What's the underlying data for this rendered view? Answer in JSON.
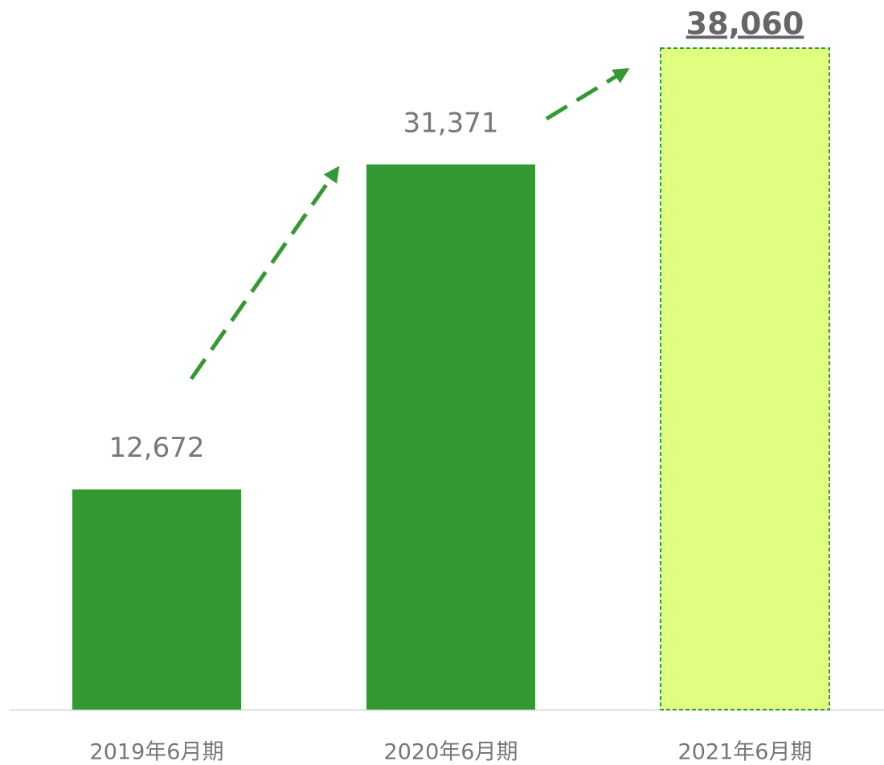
{
  "chart_data": {
    "type": "bar",
    "categories": [
      "2019年6月期",
      "2020年6月期",
      "2021年6月期"
    ],
    "values": [
      12672,
      31371,
      38060
    ],
    "value_labels": [
      "12,672",
      "31,371",
      "38,060"
    ],
    "colors": [
      "#339933",
      "#339933",
      "#e0ff80"
    ],
    "ylim": [
      0,
      38060
    ]
  }
}
